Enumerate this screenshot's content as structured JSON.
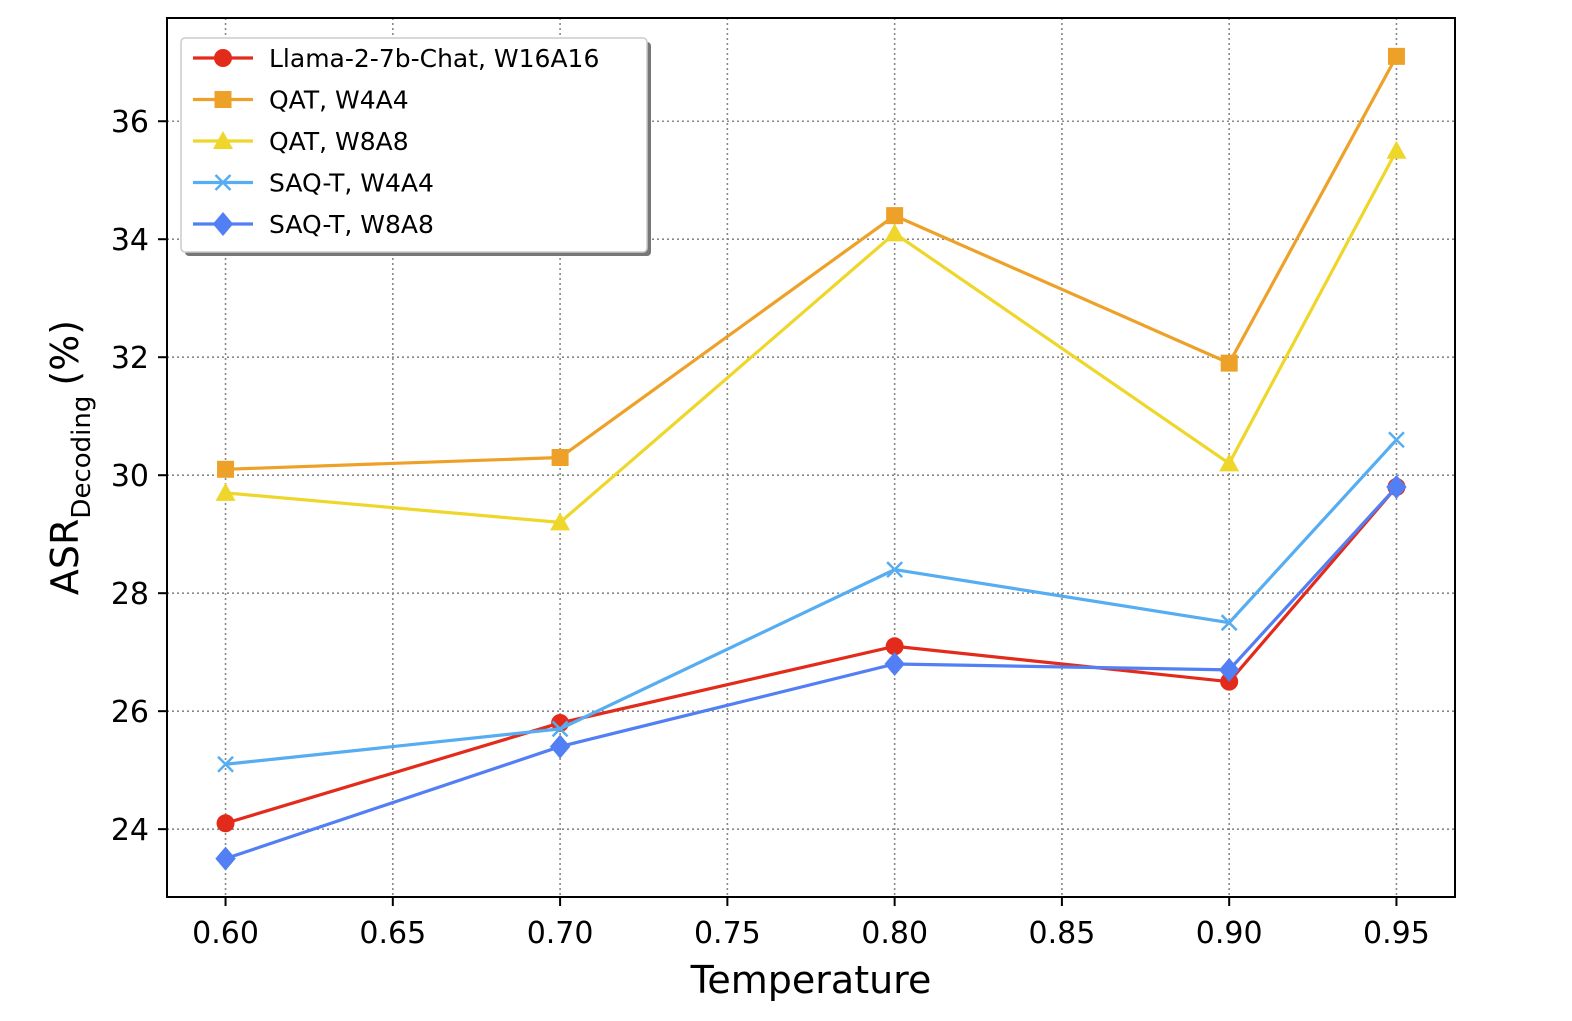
{
  "chart_data": {
    "type": "line",
    "title": "",
    "xlabel": "Temperature",
    "ylabel": {
      "main": "ASR",
      "subscript": "Decoding",
      "suffix": "(%)"
    },
    "x": [
      0.6,
      0.7,
      0.8,
      0.9,
      0.95
    ],
    "xlim": [
      0.5825,
      0.9675
    ],
    "ylim": [
      22.85,
      37.75
    ],
    "xticks": [
      0.6,
      0.65,
      0.7,
      0.75,
      0.8,
      0.85,
      0.9,
      0.95
    ],
    "xtick_labels": [
      "0.60",
      "0.65",
      "0.70",
      "0.75",
      "0.80",
      "0.85",
      "0.90",
      "0.95"
    ],
    "yticks": [
      24,
      26,
      28,
      30,
      32,
      34,
      36
    ],
    "ytick_labels": [
      "24",
      "26",
      "28",
      "30",
      "32",
      "34",
      "36"
    ],
    "grid": true,
    "legend_position": "top-left",
    "series": [
      {
        "name": "Llama-2-7b-Chat, W16A16",
        "color": "#e32b1c",
        "marker": "circle",
        "values": [
          24.1,
          25.8,
          27.1,
          26.5,
          29.8
        ]
      },
      {
        "name": "QAT, W4A4",
        "color": "#eea128",
        "marker": "square",
        "values": [
          30.1,
          30.3,
          34.4,
          31.9,
          37.1
        ]
      },
      {
        "name": "QAT, W8A8",
        "color": "#efd62a",
        "marker": "triangle",
        "values": [
          29.7,
          29.2,
          34.1,
          30.2,
          35.5
        ]
      },
      {
        "name": "SAQ-T, W4A4",
        "color": "#56adf1",
        "marker": "x",
        "values": [
          25.1,
          25.7,
          28.4,
          27.5,
          30.6
        ]
      },
      {
        "name": "SAQ-T, W8A8",
        "color": "#527ff4",
        "marker": "diamond",
        "values": [
          23.5,
          25.4,
          26.8,
          26.7,
          29.8
        ]
      }
    ]
  }
}
